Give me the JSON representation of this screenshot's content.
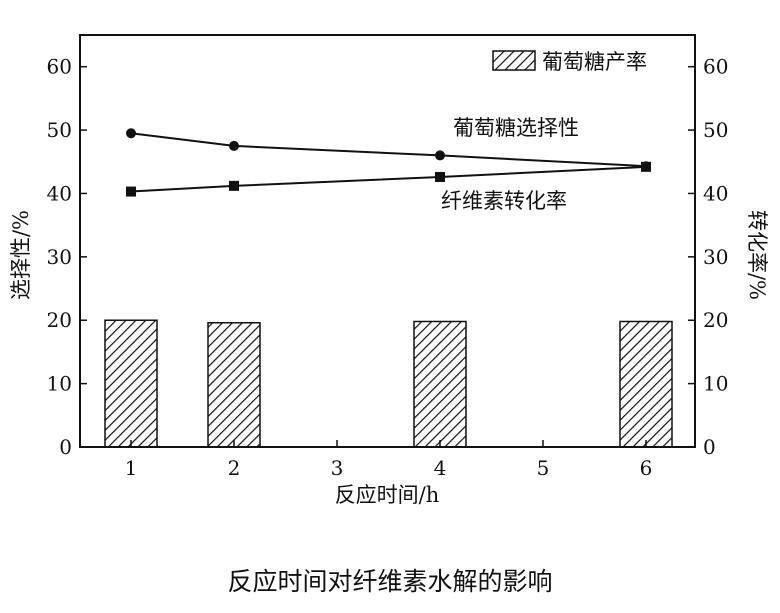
{
  "caption": "反应时间对纤维素水解的影响",
  "chart_data": {
    "type": "bar",
    "categories": [
      "1",
      "2",
      "3",
      "4",
      "5",
      "6"
    ],
    "xlabel": "反应时间/h",
    "ylabel_left": "选择性/%",
    "ylabel_right": "转化率/%",
    "ylim": [
      0,
      65
    ],
    "yticks": [
      0,
      10,
      20,
      30,
      40,
      50,
      60
    ],
    "legend": {
      "position": "top-right",
      "label": "葡萄糖产率"
    },
    "bars": {
      "name": "葡萄糖产率",
      "values": [
        20.0,
        19.6,
        null,
        19.8,
        null,
        19.8
      ],
      "pattern": "diagonal-hatch"
    },
    "lines": [
      {
        "name": "葡萄糖选择性",
        "marker": "circle",
        "x": [
          "1",
          "2",
          "4",
          "6"
        ],
        "values": [
          49.5,
          47.5,
          46.0,
          44.3
        ]
      },
      {
        "name": "纤维素转化率",
        "marker": "square",
        "x": [
          "1",
          "2",
          "4",
          "6"
        ],
        "values": [
          40.3,
          41.2,
          42.6,
          44.2
        ]
      }
    ],
    "annotations": [
      {
        "text": "葡萄糖选择性",
        "near": "葡萄糖选择性"
      },
      {
        "text": "纤维素转化率",
        "near": "纤维素转化率"
      }
    ],
    "grid": false
  }
}
